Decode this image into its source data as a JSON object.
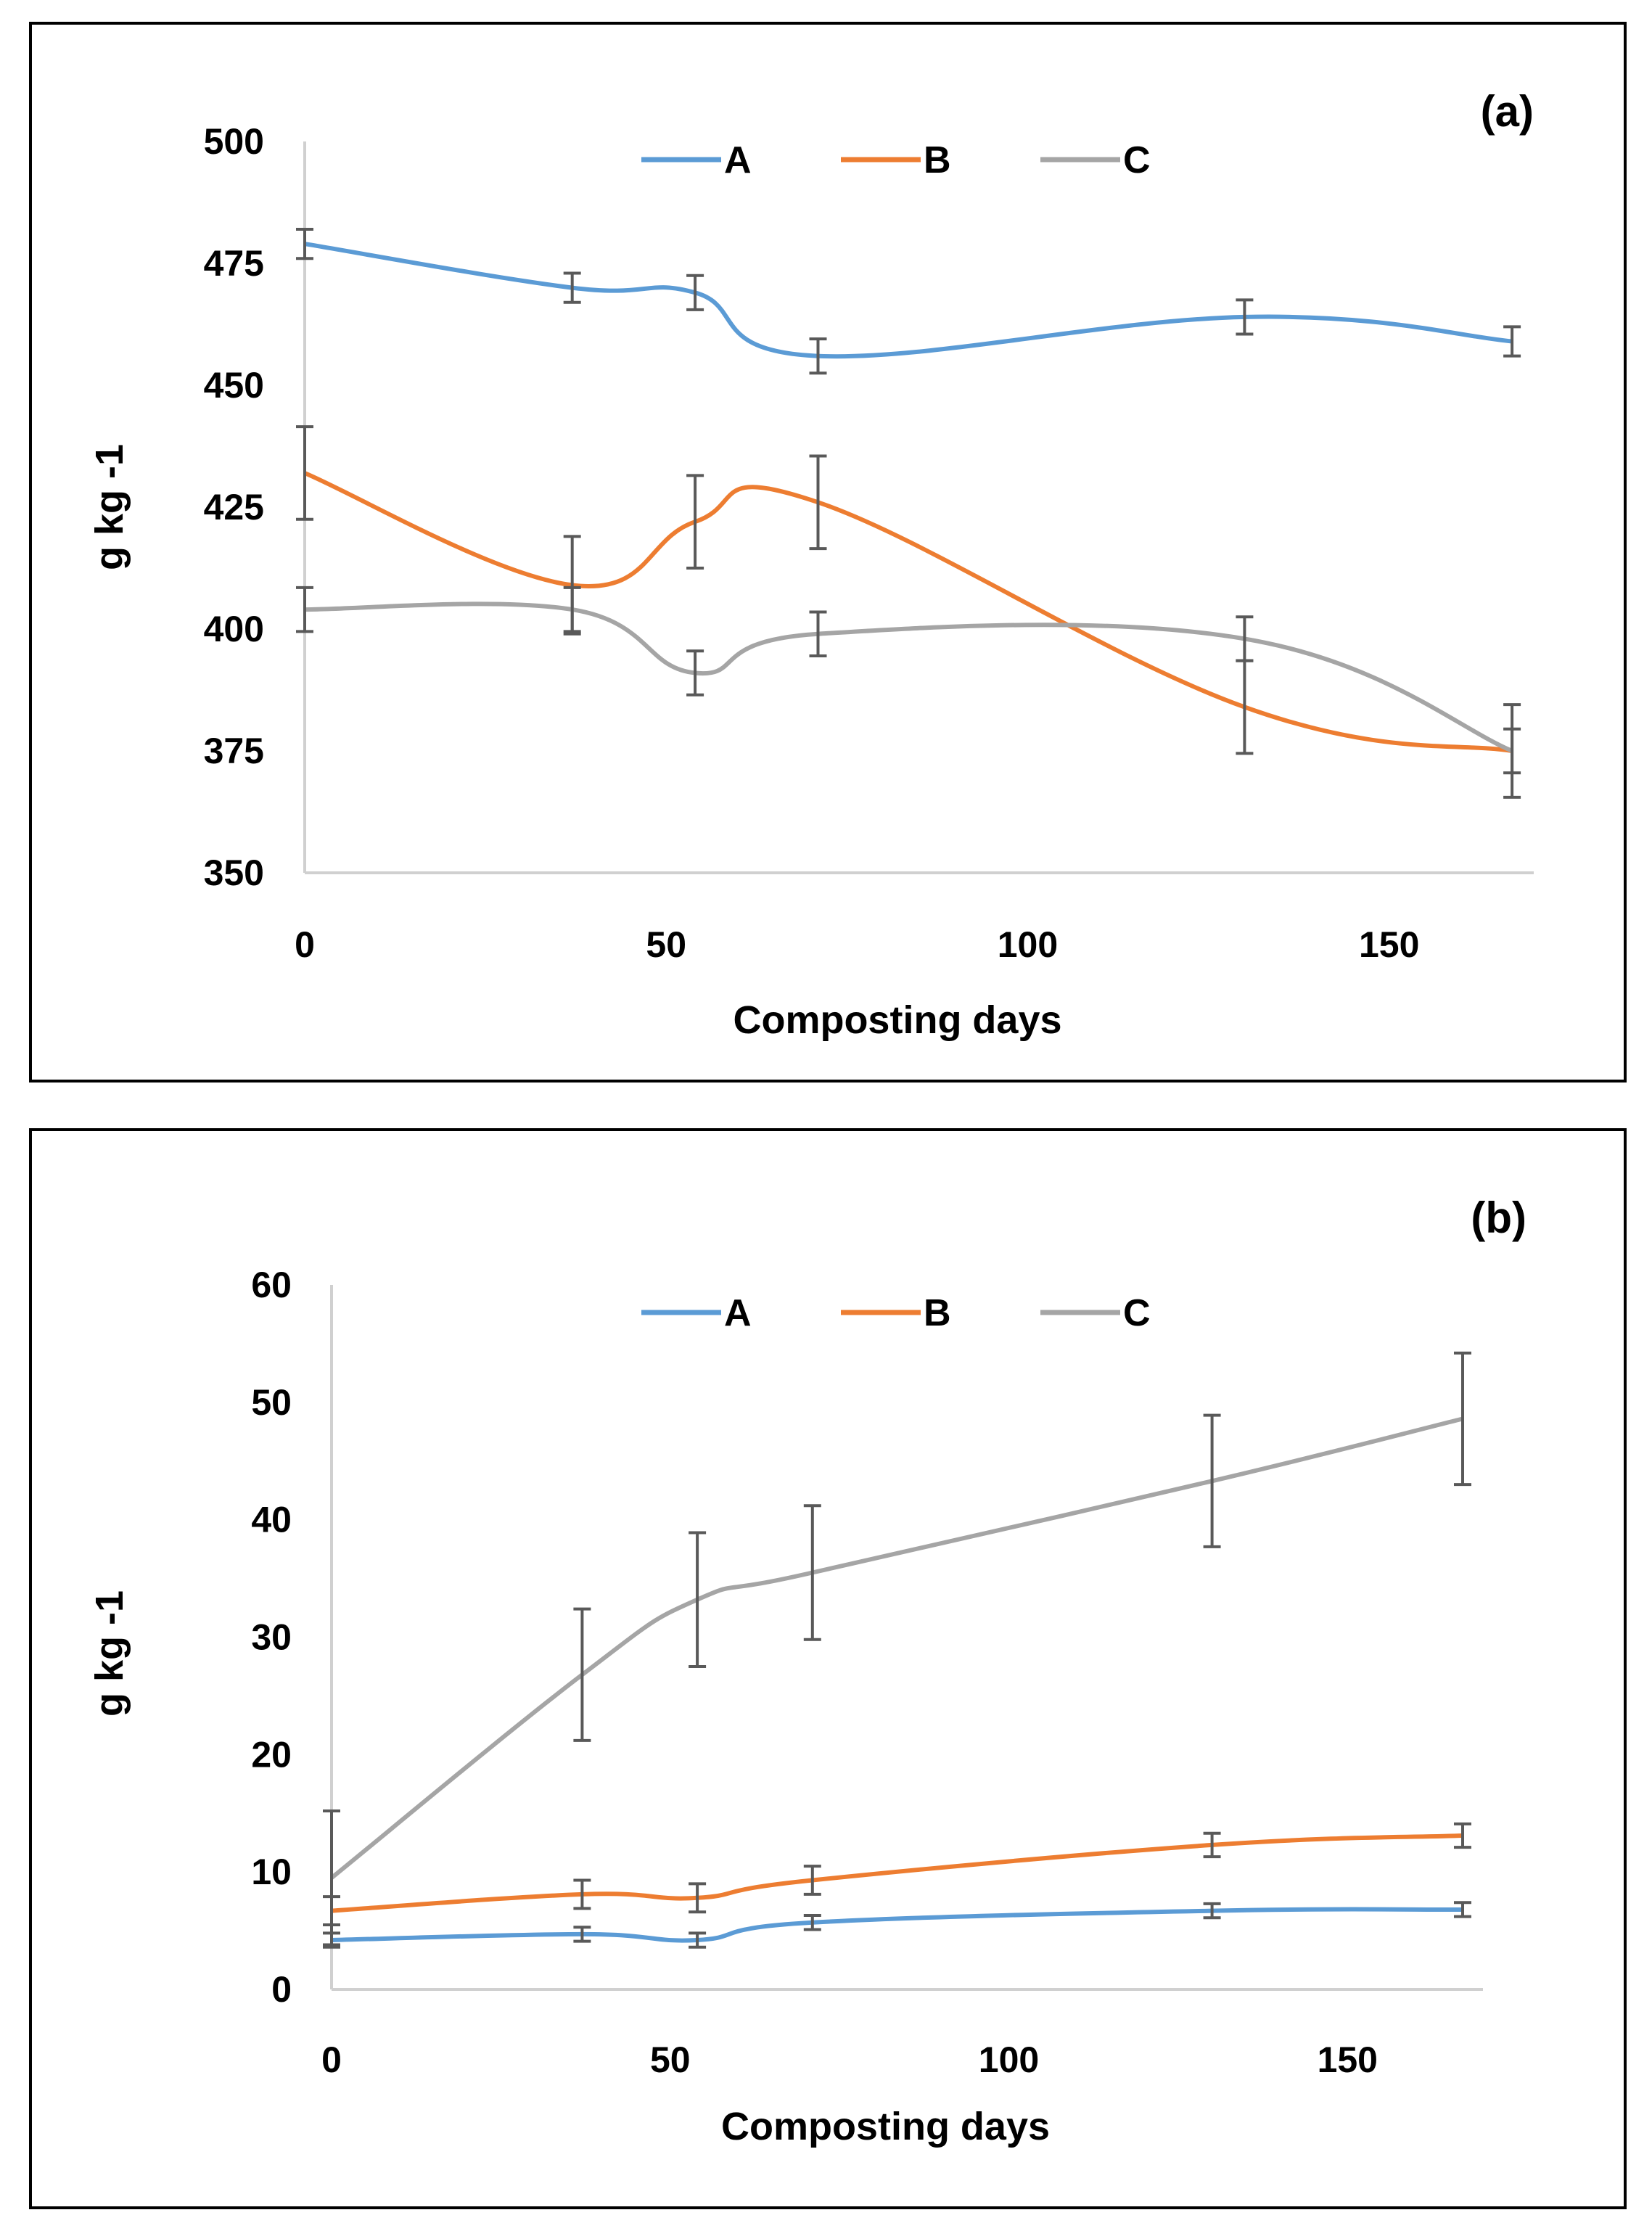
{
  "chart_data": [
    {
      "type": "line",
      "panel_label": "(a)",
      "xlabel": "Composting days",
      "ylabel": "g kg -1",
      "xlim": [
        0,
        170
      ],
      "ylim": [
        350,
        500
      ],
      "xticks": [
        0,
        50,
        100,
        150
      ],
      "yticks": [
        350,
        375,
        400,
        425,
        450,
        475,
        500
      ],
      "x": [
        0,
        37,
        54,
        71,
        130,
        167
      ],
      "legend_position": "top-center",
      "series": [
        {
          "name": "A",
          "color": "#5b9bd5",
          "values": [
            479,
            470,
            469,
            456,
            464,
            459
          ],
          "errors": [
            3,
            3,
            3.5,
            3.5,
            3.5,
            3
          ]
        },
        {
          "name": "B",
          "color": "#ed7d31",
          "values": [
            432,
            409,
            422,
            426,
            384,
            375
          ],
          "errors": [
            9.5,
            10,
            9.5,
            9.5,
            9.5,
            9.5
          ]
        },
        {
          "name": "C",
          "color": "#a5a5a5",
          "values": [
            404,
            404,
            391,
            399,
            398,
            375
          ],
          "errors": [
            4.5,
            4.5,
            4.5,
            4.5,
            4.5,
            4.5
          ]
        }
      ]
    },
    {
      "type": "line",
      "panel_label": "(b)",
      "xlabel": "Composting days",
      "ylabel": "g kg -1",
      "xlim": [
        0,
        170
      ],
      "ylim": [
        0,
        60
      ],
      "xticks": [
        0,
        50,
        100,
        150
      ],
      "yticks": [
        0,
        10,
        20,
        30,
        40,
        50,
        60
      ],
      "x": [
        0,
        37,
        54,
        71,
        130,
        167
      ],
      "legend_position": "top-center",
      "series": [
        {
          "name": "A",
          "color": "#5b9bd5",
          "values": [
            4.2,
            4.7,
            4.2,
            5.7,
            6.7,
            6.8
          ],
          "errors": [
            0.6,
            0.6,
            0.6,
            0.6,
            0.6,
            0.6
          ]
        },
        {
          "name": "B",
          "color": "#ed7d31",
          "values": [
            6.7,
            8.1,
            7.8,
            9.3,
            12.3,
            13.1
          ],
          "errors": [
            1.2,
            1.2,
            1.2,
            1.2,
            1.0,
            1.0
          ]
        },
        {
          "name": "C",
          "color": "#a5a5a5",
          "values": [
            9.5,
            26.8,
            33.2,
            35.5,
            43.3,
            48.6
          ],
          "errors": [
            5.7,
            5.6,
            5.7,
            5.7,
            5.6,
            5.6
          ]
        }
      ]
    }
  ]
}
